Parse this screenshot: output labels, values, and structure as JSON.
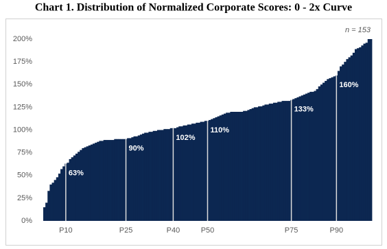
{
  "chart_data": {
    "type": "bar",
    "title": "Chart 1. Distribution of Normalized Corporate Scores: 0 - 2x Curve",
    "annotation": "n = 153",
    "color": "#0c2751",
    "grid": false,
    "ylim": [
      0,
      200
    ],
    "yticks": [
      {
        "value": 0,
        "label": "0%"
      },
      {
        "value": 25,
        "label": "25%"
      },
      {
        "value": 50,
        "label": "50%"
      },
      {
        "value": 75,
        "label": "75%"
      },
      {
        "value": 100,
        "label": "100%"
      },
      {
        "value": 125,
        "label": "125%"
      },
      {
        "value": 150,
        "label": "150%"
      },
      {
        "value": 175,
        "label": "175%"
      },
      {
        "value": 200,
        "label": "200%"
      }
    ],
    "categories": [
      null,
      null,
      null,
      null,
      null,
      null,
      null,
      null,
      null,
      null,
      "P10",
      null,
      null,
      null,
      null,
      null,
      null,
      null,
      null,
      null,
      null,
      null,
      null,
      null,
      null,
      null,
      null,
      null,
      null,
      null,
      null,
      null,
      null,
      null,
      null,
      null,
      null,
      null,
      "P25",
      null,
      null,
      null,
      null,
      null,
      null,
      null,
      null,
      null,
      null,
      null,
      null,
      null,
      null,
      null,
      null,
      null,
      null,
      null,
      null,
      null,
      "P40",
      null,
      null,
      null,
      null,
      null,
      null,
      null,
      null,
      null,
      null,
      null,
      null,
      null,
      null,
      null,
      "P50",
      null,
      null,
      null,
      null,
      null,
      null,
      null,
      null,
      null,
      null,
      null,
      null,
      null,
      null,
      null,
      null,
      null,
      null,
      null,
      null,
      null,
      null,
      null,
      null,
      null,
      null,
      null,
      null,
      null,
      null,
      null,
      null,
      null,
      null,
      null,
      null,
      null,
      null,
      "P75",
      null,
      null,
      null,
      null,
      null,
      null,
      null,
      null,
      null,
      null,
      null,
      null,
      null,
      null,
      null,
      null,
      null,
      null,
      null,
      null,
      "P90",
      null,
      null,
      null,
      null,
      null,
      null,
      null,
      null,
      null,
      null,
      null,
      null,
      null,
      null,
      null,
      null
    ],
    "values": [
      15,
      20,
      33,
      40,
      42,
      45,
      48,
      52,
      57,
      60,
      63,
      64,
      68,
      70,
      72,
      74,
      76,
      78,
      80,
      81,
      82,
      83,
      84,
      85,
      86,
      87,
      88,
      88,
      89,
      89,
      89,
      89,
      89,
      90,
      90,
      90,
      90,
      90,
      90,
      91,
      91,
      92,
      93,
      93,
      94,
      95,
      96,
      97,
      97,
      98,
      98,
      99,
      99,
      100,
      100,
      100,
      101,
      101,
      101,
      102,
      102,
      102,
      103,
      104,
      104,
      105,
      105,
      106,
      106,
      107,
      107,
      108,
      108,
      109,
      109,
      110,
      110,
      111,
      112,
      113,
      114,
      115,
      116,
      117,
      118,
      119,
      119,
      120,
      120,
      120,
      120,
      120,
      120,
      121,
      121,
      122,
      123,
      124,
      125,
      125,
      126,
      126,
      127,
      128,
      128,
      129,
      129,
      130,
      130,
      131,
      131,
      132,
      132,
      132,
      132,
      133,
      134,
      135,
      136,
      137,
      138,
      139,
      140,
      141,
      142,
      142,
      143,
      145,
      148,
      150,
      152,
      154,
      156,
      157,
      158,
      159,
      160,
      165,
      170,
      172,
      175,
      178,
      180,
      182,
      185,
      189,
      190,
      191,
      193,
      195,
      196,
      200,
      200
    ],
    "value_labels": [
      null,
      null,
      null,
      null,
      null,
      null,
      null,
      null,
      null,
      null,
      "63%",
      null,
      null,
      null,
      null,
      null,
      null,
      null,
      null,
      null,
      null,
      null,
      null,
      null,
      null,
      null,
      null,
      null,
      null,
      null,
      null,
      null,
      null,
      null,
      null,
      null,
      null,
      null,
      "90%",
      null,
      null,
      null,
      null,
      null,
      null,
      null,
      null,
      null,
      null,
      null,
      null,
      null,
      null,
      null,
      null,
      null,
      null,
      null,
      null,
      null,
      "102%",
      null,
      null,
      null,
      null,
      null,
      null,
      null,
      null,
      null,
      null,
      null,
      null,
      null,
      null,
      null,
      "110%",
      null,
      null,
      null,
      null,
      null,
      null,
      null,
      null,
      null,
      null,
      null,
      null,
      null,
      null,
      null,
      null,
      null,
      null,
      null,
      null,
      null,
      null,
      null,
      null,
      null,
      null,
      null,
      null,
      null,
      null,
      null,
      null,
      null,
      null,
      null,
      null,
      null,
      null,
      "133%",
      null,
      null,
      null,
      null,
      null,
      null,
      null,
      null,
      null,
      null,
      null,
      null,
      null,
      null,
      null,
      null,
      null,
      null,
      null,
      null,
      "160%",
      null,
      null,
      null,
      null,
      null,
      null,
      null,
      null,
      null,
      null,
      null,
      null,
      null,
      null,
      null,
      null
    ]
  }
}
